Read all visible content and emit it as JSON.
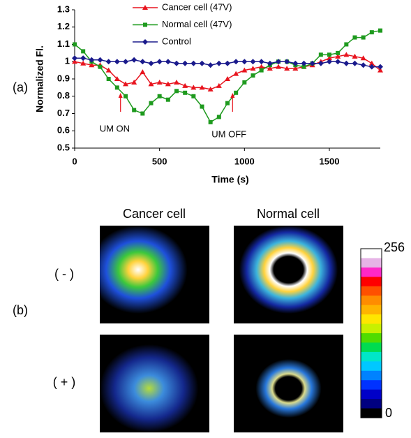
{
  "chart_data": {
    "type": "line",
    "ylabel": "Normalized Fl.",
    "xlabel": "Time (s)",
    "x": [
      0,
      50,
      100,
      150,
      200,
      250,
      300,
      350,
      400,
      450,
      500,
      550,
      600,
      650,
      700,
      750,
      800,
      850,
      900,
      950,
      1000,
      1050,
      1100,
      1150,
      1200,
      1250,
      1300,
      1350,
      1400,
      1450,
      1500,
      1550,
      1600,
      1650,
      1700,
      1750,
      1800
    ],
    "series": [
      {
        "name": "Cancer cell (47V)",
        "color": "#e8141e",
        "marker": "triangle",
        "values": [
          1.0,
          0.99,
          0.98,
          0.98,
          0.95,
          0.9,
          0.87,
          0.88,
          0.94,
          0.87,
          0.88,
          0.87,
          0.88,
          0.86,
          0.85,
          0.85,
          0.84,
          0.86,
          0.9,
          0.93,
          0.95,
          0.96,
          0.97,
          0.96,
          0.97,
          0.96,
          0.96,
          0.97,
          0.98,
          1.0,
          1.02,
          1.03,
          1.04,
          1.03,
          1.02,
          0.99,
          0.95
        ]
      },
      {
        "name": "Normal cell (47V)",
        "color": "#1e9a1e",
        "marker": "square",
        "values": [
          1.1,
          1.06,
          1.0,
          0.97,
          0.9,
          0.85,
          0.8,
          0.72,
          0.7,
          0.76,
          0.8,
          0.78,
          0.83,
          0.82,
          0.8,
          0.74,
          0.65,
          0.68,
          0.76,
          0.82,
          0.88,
          0.92,
          0.95,
          0.98,
          1.0,
          1.0,
          0.98,
          0.97,
          0.99,
          1.04,
          1.04,
          1.05,
          1.1,
          1.14,
          1.14,
          1.17,
          1.18
        ]
      },
      {
        "name": "Control",
        "color": "#1a1a8c",
        "marker": "diamond",
        "values": [
          1.02,
          1.02,
          1.01,
          1.01,
          1.0,
          1.0,
          1.0,
          1.01,
          1.0,
          0.99,
          1.0,
          1.0,
          0.99,
          0.99,
          0.99,
          0.99,
          0.98,
          0.99,
          0.99,
          1.0,
          1.0,
          1.0,
          1.0,
          0.99,
          1.0,
          1.0,
          0.99,
          0.99,
          0.99,
          0.99,
          1.0,
          1.0,
          0.99,
          0.99,
          0.98,
          0.97,
          0.97
        ]
      }
    ],
    "xlim": [
      0,
      1800
    ],
    "xticks": [
      0,
      500,
      1000,
      1500
    ],
    "ylim": [
      0.5,
      1.3
    ],
    "yticks": [
      0.5,
      0.6,
      0.7,
      0.8,
      0.9,
      1,
      1.1,
      1.2,
      1.3
    ],
    "legend": "top",
    "annotations": [
      {
        "text": "UM ON",
        "x": 270
      },
      {
        "text": "UM OFF",
        "x": 930
      }
    ]
  },
  "panel_labels": [
    "(a)",
    "(b)"
  ],
  "images": {
    "columns": [
      "Cancer cell",
      "Normal cell"
    ],
    "rows": [
      "( - )",
      "( + )"
    ],
    "colorbar": {
      "max_label": "256",
      "min_label": "0"
    }
  }
}
